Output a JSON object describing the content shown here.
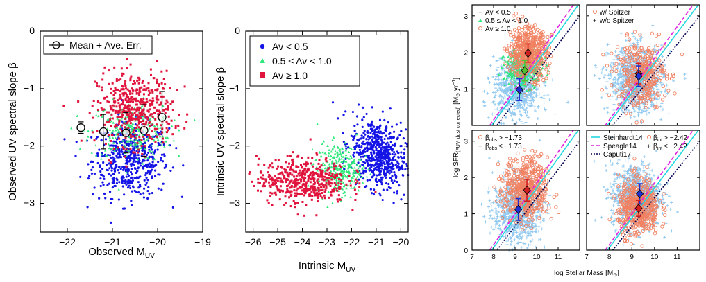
{
  "colors": {
    "blue": "#1414e6",
    "green": "#2ee87a",
    "red": "#e0143c",
    "lightblue": "#8ec8f0",
    "orange": "#f08060",
    "cyan": "#22d8e0",
    "magenta": "#e020e0",
    "navy": "#000050",
    "meanblue": "#2030d0",
    "meangreen": "#50c030",
    "meanred": "#d02020"
  },
  "chart_data": [
    {
      "id": "p1",
      "type": "scatter",
      "xlabel": "Observed M",
      "xlabel_sub": "UV",
      "ylabel": "Observed UV spectral slope β",
      "xlim": [
        -22.6,
        -19
      ],
      "ylim": [
        -3.5,
        0
      ],
      "x_reversed": true,
      "xticks": [
        -22,
        -21,
        -20,
        -19
      ],
      "xtick_labels": [
        "−22",
        "−21",
        "−20",
        "−19"
      ],
      "yticks": [
        -3,
        -2,
        -1,
        0
      ],
      "ytick_labels": [
        "−3",
        "−2",
        "−1",
        "0"
      ],
      "legend": {
        "position": "top-left",
        "entries": [
          "Mean + Ave. Err."
        ]
      },
      "series_clouds": [
        {
          "name": "Av < 0.5",
          "color": "blue",
          "marker": "circle",
          "n": 520,
          "x_mean": -20.6,
          "x_sd": 0.42,
          "y_mean": -2.25,
          "y_sd": 0.32
        },
        {
          "name": "0.5 ≤ Av < 1.0",
          "color": "green",
          "marker": "triangle",
          "n": 260,
          "x_mean": -20.6,
          "x_sd": 0.45,
          "y_mean": -1.75,
          "y_sd": 0.25
        },
        {
          "name": "Av ≥ 1.0",
          "color": "red",
          "marker": "square",
          "n": 480,
          "x_mean": -20.5,
          "x_sd": 0.42,
          "y_mean": -1.35,
          "y_sd": 0.32
        }
      ],
      "mean_points": {
        "x": [
          -21.7,
          -21.2,
          -20.7,
          -20.3,
          -19.9
        ],
        "y": [
          -1.68,
          -1.75,
          -1.77,
          -1.73,
          -1.5
        ],
        "err": [
          0.1,
          0.3,
          0.35,
          0.45,
          0.45
        ]
      }
    },
    {
      "id": "p2",
      "type": "scatter",
      "xlabel": "Intrinsic M",
      "xlabel_sub": "UV",
      "ylabel": "Intrinsic UV spectral slope β",
      "xlim": [
        -26.3,
        -19.7
      ],
      "ylim": [
        -3.5,
        0
      ],
      "x_reversed": true,
      "xticks": [
        -26,
        -25,
        -24,
        -23,
        -22,
        -21,
        -20
      ],
      "xtick_labels": [
        "−26",
        "−25",
        "−24",
        "−23",
        "−22",
        "−21",
        "−20"
      ],
      "yticks": [
        -3,
        -2,
        -1,
        0
      ],
      "ytick_labels": [
        "−3",
        "−2",
        "−1",
        "0"
      ],
      "legend": {
        "position": "top-left",
        "entries": [
          "Av < 0.5",
          "0.5 ≤ Av < 1.0",
          "Av ≥ 1.0"
        ]
      },
      "series_clouds": [
        {
          "name": "Av < 0.5",
          "color": "blue",
          "marker": "circle",
          "n": 600,
          "x_mean": -20.9,
          "x_sd": 0.55,
          "y_mean": -2.15,
          "y_sd": 0.3,
          "slope": -0.15
        },
        {
          "name": "0.5 ≤ Av < 1.0",
          "color": "green",
          "marker": "triangle",
          "n": 300,
          "x_mean": -22.5,
          "x_sd": 0.45,
          "y_mean": -2.4,
          "y_sd": 0.22
        },
        {
          "name": "Av ≥ 1.0",
          "color": "red",
          "marker": "square",
          "n": 500,
          "x_mean": -24.0,
          "x_sd": 0.9,
          "y_mean": -2.6,
          "y_sd": 0.2
        }
      ]
    },
    {
      "id": "p3",
      "type": "scatter",
      "panel_legend": {
        "position": "top-left",
        "entries": [
          "Av < 0.5",
          "0.5 ≤ Av < 1.0",
          "Av ≥ 1.0"
        ]
      },
      "series_clouds": [
        {
          "name": "Av < 0.5",
          "color": "lightblue",
          "marker": "plus",
          "n": 700,
          "x_mean": 9.1,
          "x_sd": 0.55,
          "y_mean": 1.0,
          "y_sd": 0.4
        },
        {
          "name": "0.5 ≤ Av < 1.0",
          "color": "green",
          "marker": "triangle",
          "n": 400,
          "x_mean": 9.4,
          "x_sd": 0.45,
          "y_mean": 1.55,
          "y_sd": 0.25
        },
        {
          "name": "Av ≥ 1.0",
          "color": "orange",
          "marker": "ring",
          "n": 500,
          "x_mean": 9.6,
          "x_sd": 0.45,
          "y_mean": 2.0,
          "y_sd": 0.35
        }
      ],
      "mean_points": [
        {
          "x": 9.2,
          "y": 0.98,
          "err": 0.3,
          "color": "meanblue"
        },
        {
          "x": 9.45,
          "y": 1.5,
          "err": 0.28,
          "color": "meangreen"
        },
        {
          "x": 9.6,
          "y": 1.98,
          "err": 0.25,
          "color": "meanred"
        }
      ]
    },
    {
      "id": "p4",
      "type": "scatter",
      "panel_legend": {
        "position": "top-left",
        "entries": [
          "w/ Spitzer",
          "w/o Spitzer"
        ]
      },
      "series_clouds": [
        {
          "name": "w/o Spitzer",
          "color": "lightblue",
          "marker": "plus",
          "n": 900,
          "x_mean": 9.2,
          "x_sd": 0.6,
          "y_mean": 1.25,
          "y_sd": 0.45
        },
        {
          "name": "w/ Spitzer",
          "color": "orange",
          "marker": "ring",
          "n": 350,
          "x_mean": 9.4,
          "x_sd": 0.55,
          "y_mean": 1.4,
          "y_sd": 0.45
        }
      ],
      "mean_points": [
        {
          "x": 9.3,
          "y": 1.42,
          "err": 0.28,
          "color": "meanred"
        },
        {
          "x": 9.3,
          "y": 1.35,
          "err": 0.28,
          "color": "meanblue"
        }
      ]
    },
    {
      "id": "p5",
      "type": "scatter",
      "panel_legend": {
        "position": "top-left",
        "entries": [
          "β",
          "β"
        ],
        "subs": [
          "obs",
          "obs"
        ],
        "suffix": [
          "> −1.73",
          "≤ −1.73"
        ]
      },
      "series_clouds": [
        {
          "name": "β obs ≤ −1.73",
          "color": "lightblue",
          "marker": "plus",
          "n": 800,
          "x_mean": 9.1,
          "x_sd": 0.55,
          "y_mean": 1.1,
          "y_sd": 0.45
        },
        {
          "name": "β obs > −1.73",
          "color": "orange",
          "marker": "ring",
          "n": 500,
          "x_mean": 9.5,
          "x_sd": 0.5,
          "y_mean": 1.65,
          "y_sd": 0.45
        }
      ],
      "mean_points": [
        {
          "x": 9.55,
          "y": 1.65,
          "err": 0.3,
          "color": "meanred"
        },
        {
          "x": 9.15,
          "y": 1.12,
          "err": 0.3,
          "color": "meanblue"
        }
      ]
    },
    {
      "id": "p6",
      "type": "scatter",
      "panel_legend": {
        "position": "top",
        "lines": [
          "Steinhardt14",
          "Speagle14",
          "Caputi17"
        ],
        "points": [
          "β",
          "β"
        ],
        "subs": [
          "int",
          "int"
        ],
        "suffix": [
          "> −2.42",
          "≤ −2.42"
        ]
      },
      "series_clouds": [
        {
          "name": "β int ≤ −2.42",
          "color": "lightblue",
          "marker": "plus",
          "n": 800,
          "x_mean": 9.2,
          "x_sd": 0.55,
          "y_mean": 1.5,
          "y_sd": 0.45
        },
        {
          "name": "β int > −2.42",
          "color": "orange",
          "marker": "ring",
          "n": 500,
          "x_mean": 9.3,
          "x_sd": 0.45,
          "y_mean": 1.2,
          "y_sd": 0.4
        }
      ],
      "mean_points": [
        {
          "x": 9.35,
          "y": 1.55,
          "err": 0.28,
          "color": "meanblue"
        },
        {
          "x": 9.3,
          "y": 1.15,
          "err": 0.22,
          "color": "meanred"
        }
      ]
    }
  ],
  "grid_axes": {
    "xlabel": "log Stellar Mass [M",
    "xlabel_tail": "]",
    "ylabel": "log SFR",
    "ylabel_sub": "(FUV, dust corrected)",
    "ylabel_unit": " [M",
    "ylabel_unit_tail": " yr",
    "ylabel_unit_exp": "−1",
    "ylabel_unit_end": "]",
    "xlim": [
      7,
      12
    ],
    "ylim": [
      0,
      3.3
    ],
    "xticks": [
      7,
      8,
      9,
      10,
      11
    ],
    "xtick_labels": [
      "7",
      "8",
      "9",
      "10",
      "11"
    ],
    "yticks": [
      0,
      1,
      2,
      3
    ],
    "ytick_labels": [
      "0",
      "1",
      "2",
      "3"
    ],
    "relations": [
      {
        "name": "Steinhardt14",
        "color": "cyan",
        "dash": "solid",
        "x": [
          7,
          12
        ],
        "y": [
          -0.75,
          3.35
        ]
      },
      {
        "name": "Speagle14",
        "color": "magenta",
        "dash": "dash",
        "x": [
          7,
          12
        ],
        "y": [
          -0.7,
          3.55
        ]
      },
      {
        "name": "Caputi17",
        "color": "navy",
        "dash": "dot",
        "x": [
          7,
          12
        ],
        "y": [
          -0.9,
          3.0
        ]
      }
    ]
  }
}
